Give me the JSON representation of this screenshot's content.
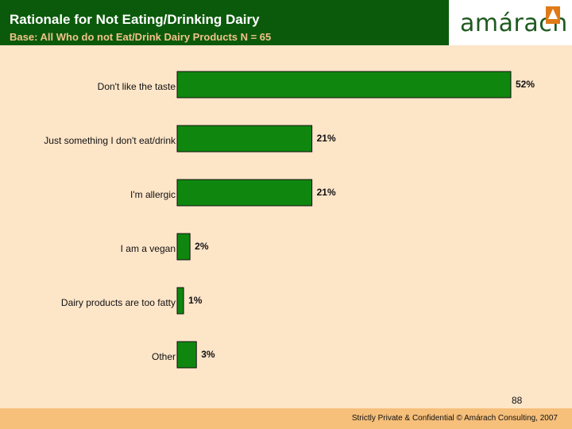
{
  "header": {
    "title": "Rationale for Not Eating/Drinking Dairy",
    "subtitle": "Base: All Who do not Eat/Drink Dairy Products N = 65"
  },
  "logo": {
    "text": "amárach"
  },
  "chart_data": {
    "type": "bar",
    "orientation": "horizontal",
    "title": "Rationale for Not Eating/Drinking Dairy",
    "categories": [
      "Don't like the taste",
      "Just something I don't eat/drink",
      "I'm allergic",
      "I am a vegan",
      "Dairy products are too fatty",
      "Other"
    ],
    "values": [
      52,
      21,
      21,
      2,
      1,
      3
    ],
    "value_labels": [
      "52%",
      "21%",
      "21%",
      "2%",
      "1%",
      "3%"
    ],
    "unit": "%",
    "xlim": [
      0,
      52
    ],
    "bar_color": "#0f870f",
    "grid": false,
    "legend": "none"
  },
  "page_number": "88",
  "footer": {
    "text": "Strictly Private & Confidential © Amárach Consulting, 2007"
  },
  "colors": {
    "background": "#fde5c8",
    "header": "#0b5a0b",
    "footer": "#f6bf7a",
    "bar": "#0f870f"
  }
}
